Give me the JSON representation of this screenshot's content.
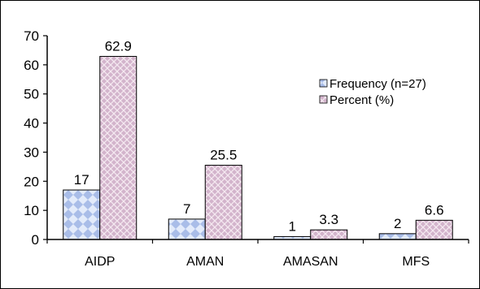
{
  "chart_data": {
    "type": "bar",
    "categories": [
      "AIDP",
      "AMAN",
      "AMASAN",
      "MFS"
    ],
    "series": [
      {
        "name": "Frequency (n=27)",
        "values": [
          17,
          7,
          1,
          2
        ],
        "labels": [
          "17",
          "7",
          "1",
          "2"
        ],
        "color": "#99b3e6"
      },
      {
        "name": "Percent (%)",
        "values": [
          62.9,
          25.5,
          3.3,
          6.6
        ],
        "labels": [
          "62.9",
          "25.5",
          "3.3",
          "6.6"
        ],
        "color": "#c9a9c4"
      }
    ],
    "yticks": [
      "0",
      "10",
      "20",
      "30",
      "40",
      "50",
      "60",
      "70"
    ],
    "ylim": [
      0,
      70
    ],
    "legend_position": "right",
    "grid": false
  }
}
